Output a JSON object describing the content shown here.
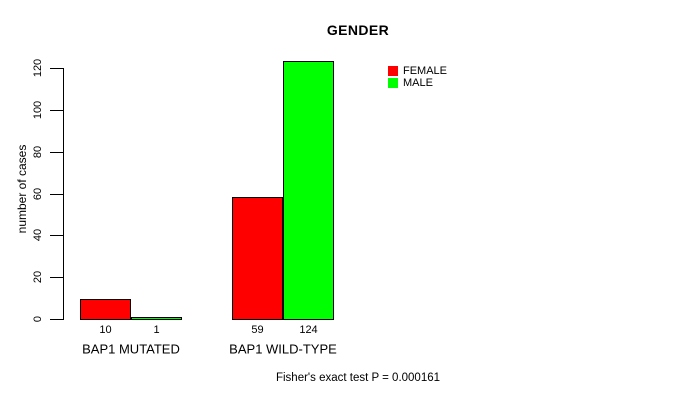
{
  "figure": {
    "title": "GENDER",
    "footer": "Fisher's exact test P = 0.000161"
  },
  "chart_data": {
    "type": "bar",
    "title": "GENDER",
    "categories": [
      "BAP1 MUTATED",
      "BAP1 WILD-TYPE"
    ],
    "series": [
      {
        "name": "FEMALE",
        "color": "#ff0000",
        "values": [
          10,
          59
        ]
      },
      {
        "name": "MALE",
        "color": "#00ff00",
        "values": [
          1,
          124
        ]
      }
    ],
    "bar_value_labels": {
      "BAP1 MUTATED": {
        "FEMALE": "10",
        "MALE": "1"
      },
      "BAP1 WILD-TYPE": {
        "FEMALE": "59",
        "MALE": "124"
      }
    },
    "xlabel": "",
    "ylabel": "number of cases",
    "ylim": [
      0,
      120
    ],
    "yticks": [
      0,
      20,
      40,
      60,
      80,
      100,
      120
    ],
    "grid": false,
    "bar_border_color": "#000000",
    "axis_color": "#000000",
    "background_color": "#ffffff",
    "legend_position": "inside-top-right",
    "annotation": "Fisher's exact test P = 0.000161"
  }
}
